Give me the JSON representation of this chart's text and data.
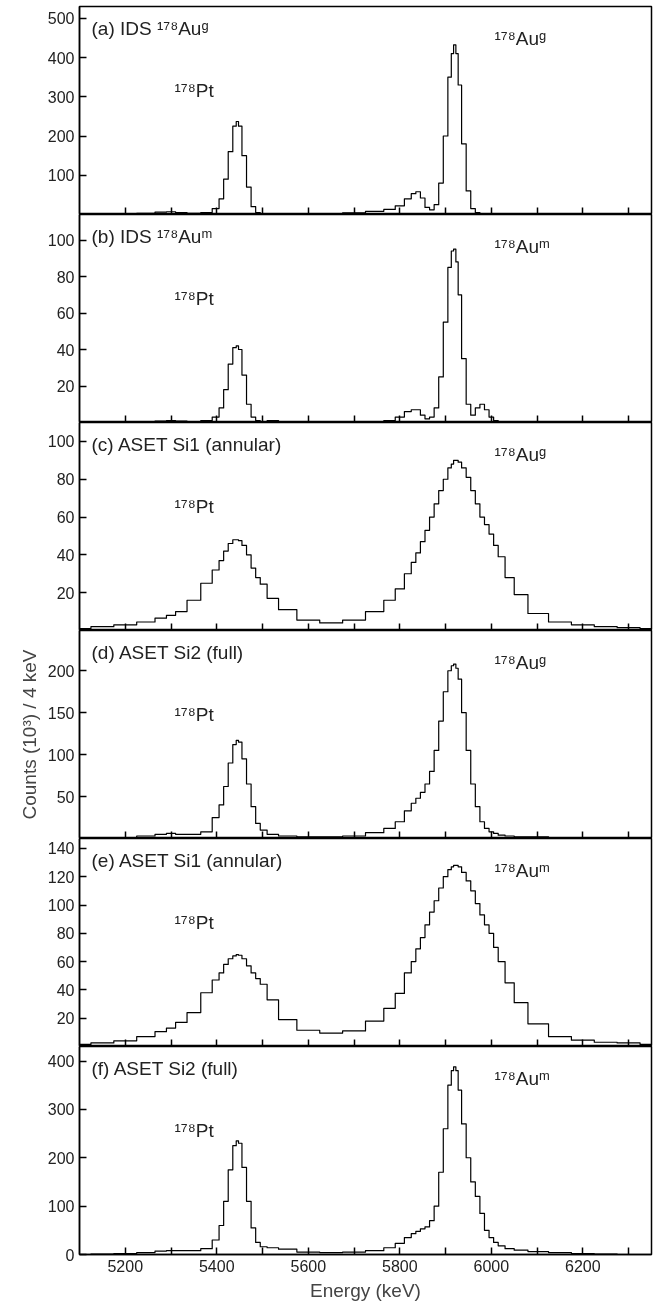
{
  "chart_data": [
    {
      "type": "step",
      "x": [
        5100,
        5150,
        5200,
        5250,
        5280,
        5300,
        5320,
        5350,
        5380,
        5400,
        5410,
        5420,
        5430,
        5440,
        5445,
        5450,
        5460,
        5470,
        5480,
        5490,
        5500,
        5520,
        5550,
        5600,
        5650,
        5700,
        5750,
        5780,
        5800,
        5820,
        5830,
        5840,
        5850,
        5860,
        5870,
        5880,
        5890,
        5900,
        5910,
        5915,
        5920,
        5925,
        5930,
        5940,
        5950,
        5960,
        5970,
        5980,
        5990,
        6000,
        6010,
        6020,
        6040,
        6060,
        6100,
        6150,
        6200,
        6250,
        6300,
        6350
      ],
      "series": [
        {
          "color": "#000000",
          "values": [
            0,
            0,
            1,
            3,
            6,
            7,
            5,
            3,
            5,
            15,
            40,
            90,
            160,
            225,
            237,
            225,
            150,
            70,
            20,
            5,
            2,
            1,
            1,
            1,
            2,
            4,
            8,
            13,
            22,
            40,
            53,
            58,
            42,
            18,
            12,
            25,
            80,
            200,
            350,
            410,
            432,
            410,
            330,
            180,
            60,
            15,
            5,
            2,
            1,
            1,
            0,
            0,
            0,
            0,
            0,
            0,
            0,
            0,
            0,
            0
          ]
        }
      ],
      "xlim": [
        5100,
        6350
      ],
      "xticks": [
        {
          "value": 5200,
          "label": null
        },
        {
          "value": 5300,
          "label": null
        },
        {
          "value": 5400,
          "label": null
        },
        {
          "value": 5500,
          "label": null
        },
        {
          "value": 5600,
          "label": null
        },
        {
          "value": 5700,
          "label": null
        },
        {
          "value": 5800,
          "label": null
        },
        {
          "value": 5900,
          "label": null
        },
        {
          "value": 6000,
          "label": null
        },
        {
          "value": 6100,
          "label": null
        },
        {
          "value": 6200,
          "label": null
        },
        {
          "value": 6300,
          "label": null
        }
      ],
      "ylim": [
        0,
        530
      ],
      "yticks": [
        100,
        200,
        300,
        400,
        500
      ],
      "tick_labels": "y",
      "annotations": [
        "(a) IDS ¹⁷⁸Auᵍ",
        "¹⁷⁸Auᵍ",
        "¹⁷⁸Pt"
      ]
    },
    {
      "type": "step",
      "x": [
        5100,
        5150,
        5200,
        5250,
        5280,
        5300,
        5320,
        5350,
        5380,
        5400,
        5410,
        5420,
        5430,
        5440,
        5445,
        5450,
        5460,
        5470,
        5480,
        5490,
        5500,
        5520,
        5550,
        5600,
        5650,
        5700,
        5750,
        5780,
        5800,
        5820,
        5830,
        5840,
        5850,
        5860,
        5870,
        5880,
        5890,
        5900,
        5910,
        5915,
        5920,
        5925,
        5930,
        5940,
        5950,
        5960,
        5970,
        5980,
        5990,
        6000,
        6010,
        6020,
        6040,
        6060,
        6100,
        6150,
        6200,
        6250,
        6300,
        6350
      ],
      "series": [
        {
          "color": "#000000",
          "values": [
            0,
            0,
            0.2,
            0.5,
            0.8,
            1,
            0.7,
            0.5,
            1,
            3,
            8,
            18,
            32,
            41,
            42,
            40,
            26,
            10,
            3,
            1,
            0.5,
            1,
            0.5,
            0.2,
            0.2,
            0.3,
            0.5,
            1,
            3,
            6,
            7,
            7,
            4,
            2,
            3,
            8,
            25,
            55,
            85,
            94,
            95,
            88,
            70,
            35,
            10,
            4,
            8,
            10,
            7,
            3,
            1,
            0.5,
            0.2,
            0,
            0,
            0,
            0,
            0,
            0,
            0
          ]
        }
      ],
      "xlim": [
        5100,
        6350
      ],
      "xticks": [
        {
          "value": 5200,
          "label": null
        },
        {
          "value": 5300,
          "label": null
        },
        {
          "value": 5400,
          "label": null
        },
        {
          "value": 5500,
          "label": null
        },
        {
          "value": 5600,
          "label": null
        },
        {
          "value": 5700,
          "label": null
        },
        {
          "value": 5800,
          "label": null
        },
        {
          "value": 5900,
          "label": null
        },
        {
          "value": 6000,
          "label": null
        },
        {
          "value": 6100,
          "label": null
        },
        {
          "value": 6200,
          "label": null
        },
        {
          "value": 6300,
          "label": null
        }
      ],
      "ylim": [
        0,
        114
      ],
      "yticks": [
        20,
        40,
        60,
        80,
        100
      ],
      "tick_labels": "y",
      "annotations": [
        "(b) IDS ¹⁷⁸Auᵐ",
        "¹⁷⁸Auᵐ",
        "¹⁷⁸Pt"
      ]
    },
    {
      "type": "step",
      "x": [
        5100,
        5150,
        5200,
        5250,
        5280,
        5300,
        5320,
        5350,
        5380,
        5400,
        5410,
        5420,
        5430,
        5440,
        5445,
        5450,
        5460,
        5470,
        5480,
        5490,
        5500,
        5520,
        5550,
        5600,
        5650,
        5700,
        5750,
        5780,
        5800,
        5820,
        5830,
        5840,
        5850,
        5860,
        5870,
        5880,
        5890,
        5900,
        5910,
        5915,
        5920,
        5925,
        5930,
        5940,
        5950,
        5960,
        5970,
        5980,
        5990,
        6000,
        6010,
        6020,
        6040,
        6060,
        6100,
        6150,
        6200,
        6250,
        6300,
        6350
      ],
      "series": [
        {
          "color": "#000000",
          "values": [
            1,
            2,
            3,
            4.5,
            6.5,
            8,
            10,
            16,
            25,
            32,
            37,
            42,
            46,
            48,
            48,
            47.5,
            45,
            40,
            33,
            28,
            24.5,
            17,
            11,
            5.5,
            4,
            5.5,
            10,
            16,
            22,
            30,
            36,
            41,
            47,
            53,
            60,
            67,
            74,
            80,
            86,
            88,
            90,
            90,
            89,
            86,
            81,
            74,
            67,
            60,
            56,
            51,
            45,
            39,
            28,
            19,
            9,
            4.5,
            3,
            2,
            1.5,
            1
          ]
        }
      ],
      "xlim": [
        5100,
        6350
      ],
      "xticks": [
        {
          "value": 5200,
          "label": null
        },
        {
          "value": 5300,
          "label": null
        },
        {
          "value": 5400,
          "label": null
        },
        {
          "value": 5500,
          "label": null
        },
        {
          "value": 5600,
          "label": null
        },
        {
          "value": 5700,
          "label": null
        },
        {
          "value": 5800,
          "label": null
        },
        {
          "value": 5900,
          "label": null
        },
        {
          "value": 6000,
          "label": null
        },
        {
          "value": 6100,
          "label": null
        },
        {
          "value": 6200,
          "label": null
        },
        {
          "value": 6300,
          "label": null
        }
      ],
      "ylim": [
        0,
        110
      ],
      "yticks": [
        20,
        40,
        60,
        80,
        100
      ],
      "tick_labels": "y",
      "annotations": [
        "(c) ASET Si1 (annular)",
        "¹⁷⁸Auᵍ",
        "¹⁷⁸Pt"
      ]
    },
    {
      "type": "step",
      "x": [
        5100,
        5150,
        5200,
        5250,
        5280,
        5300,
        5320,
        5350,
        5380,
        5400,
        5410,
        5420,
        5430,
        5440,
        5445,
        5450,
        5460,
        5470,
        5480,
        5490,
        5500,
        5520,
        5550,
        5600,
        5650,
        5700,
        5750,
        5780,
        5800,
        5820,
        5830,
        5840,
        5850,
        5860,
        5870,
        5880,
        5890,
        5900,
        5910,
        5915,
        5920,
        5925,
        5930,
        5940,
        5950,
        5960,
        5970,
        5980,
        5990,
        6000,
        6010,
        6020,
        6040,
        6060,
        6100,
        6150,
        6200,
        6250,
        6300,
        6350
      ],
      "series": [
        {
          "color": "#000000",
          "values": [
            0,
            0,
            1,
            3,
            5,
            6,
            5,
            5,
            8,
            25,
            40,
            62,
            90,
            112,
            117,
            115,
            95,
            65,
            38,
            18,
            10,
            5,
            3,
            2,
            2,
            3,
            7,
            12,
            20,
            33,
            42,
            48,
            55,
            65,
            80,
            105,
            140,
            175,
            200,
            206,
            208,
            203,
            190,
            150,
            105,
            65,
            38,
            20,
            12,
            8,
            6,
            4,
            3,
            2,
            2,
            1,
            0,
            0,
            0,
            0
          ]
        }
      ],
      "xlim": [
        5100,
        6350
      ],
      "xticks": [
        {
          "value": 5200,
          "label": null
        },
        {
          "value": 5300,
          "label": null
        },
        {
          "value": 5400,
          "label": null
        },
        {
          "value": 5500,
          "label": null
        },
        {
          "value": 5600,
          "label": null
        },
        {
          "value": 5700,
          "label": null
        },
        {
          "value": 5800,
          "label": null
        },
        {
          "value": 5900,
          "label": null
        },
        {
          "value": 6000,
          "label": null
        },
        {
          "value": 6100,
          "label": null
        },
        {
          "value": 6200,
          "label": null
        },
        {
          "value": 6300,
          "label": null
        }
      ],
      "ylim": [
        0,
        248
      ],
      "yticks": [
        50,
        100,
        150,
        200
      ],
      "tick_labels": "y",
      "ylabel": "Counts (10³) / 4 keV",
      "annotations": [
        "(d) ASET Si2 (full)",
        "¹⁷⁸Auᵍ",
        "¹⁷⁸Pt"
      ]
    },
    {
      "type": "step",
      "x": [
        5100,
        5150,
        5200,
        5250,
        5280,
        5300,
        5320,
        5350,
        5380,
        5400,
        5410,
        5420,
        5430,
        5440,
        5445,
        5450,
        5460,
        5470,
        5480,
        5490,
        5500,
        5520,
        5550,
        5600,
        5650,
        5700,
        5750,
        5780,
        5800,
        5820,
        5830,
        5840,
        5850,
        5860,
        5870,
        5880,
        5890,
        5900,
        5910,
        5915,
        5920,
        5925,
        5930,
        5940,
        5950,
        5960,
        5970,
        5980,
        5990,
        6000,
        6010,
        6020,
        6040,
        6060,
        6100,
        6150,
        6200,
        6250,
        6300,
        6350
      ],
      "series": [
        {
          "color": "#000000",
          "values": [
            1.5,
            2.5,
            4,
            7,
            10.5,
            13,
            17,
            24,
            38,
            47,
            52,
            58,
            62,
            64,
            65,
            64.5,
            62,
            57,
            52,
            48,
            44,
            33,
            19,
            11.5,
            9.5,
            11,
            18,
            27,
            37.5,
            52,
            60,
            69,
            77,
            86,
            95,
            103,
            112,
            120,
            125,
            127,
            128,
            128,
            127,
            123,
            117,
            110,
            101,
            93,
            86,
            80,
            70,
            60,
            45,
            31,
            16,
            7,
            4.5,
            3,
            2.5,
            1.5
          ]
        }
      ],
      "xlim": [
        5100,
        6350
      ],
      "xticks": [
        {
          "value": 5200,
          "label": null
        },
        {
          "value": 5300,
          "label": null
        },
        {
          "value": 5400,
          "label": null
        },
        {
          "value": 5500,
          "label": null
        },
        {
          "value": 5600,
          "label": null
        },
        {
          "value": 5700,
          "label": null
        },
        {
          "value": 5800,
          "label": null
        },
        {
          "value": 5900,
          "label": null
        },
        {
          "value": 6000,
          "label": null
        },
        {
          "value": 6100,
          "label": null
        },
        {
          "value": 6200,
          "label": null
        },
        {
          "value": 6300,
          "label": null
        }
      ],
      "ylim": [
        0,
        147
      ],
      "yticks": [
        20,
        40,
        60,
        80,
        100,
        120,
        140
      ],
      "tick_labels": "y",
      "annotations": [
        "(e) ASET Si1 (annular)",
        "¹⁷⁸Auᵐ",
        "¹⁷⁸Pt"
      ]
    },
    {
      "type": "step",
      "x": [
        5100,
        5150,
        5200,
        5250,
        5280,
        5300,
        5320,
        5350,
        5380,
        5400,
        5410,
        5420,
        5430,
        5440,
        5445,
        5450,
        5460,
        5470,
        5480,
        5490,
        5500,
        5520,
        5550,
        5600,
        5650,
        5700,
        5750,
        5780,
        5800,
        5820,
        5830,
        5840,
        5850,
        5860,
        5870,
        5880,
        5890,
        5900,
        5910,
        5915,
        5920,
        5925,
        5930,
        5940,
        5950,
        5960,
        5970,
        5980,
        5990,
        6000,
        6010,
        6020,
        6040,
        6060,
        6100,
        6150,
        6200,
        6250,
        6300,
        6350
      ],
      "series": [
        {
          "color": "#000000",
          "values": [
            0,
            1,
            2,
            4,
            7,
            8,
            8,
            8,
            12,
            30,
            60,
            110,
            175,
            225,
            235,
            230,
            180,
            110,
            55,
            25,
            16,
            14,
            11,
            5,
            4,
            5,
            8,
            14,
            23,
            35,
            43,
            48,
            53,
            57,
            70,
            100,
            170,
            260,
            350,
            380,
            388,
            380,
            340,
            270,
            200,
            150,
            120,
            85,
            50,
            35,
            25,
            18,
            12,
            9,
            6,
            4,
            2,
            1,
            0,
            0
          ]
        }
      ],
      "xlim": [
        5100,
        6350
      ],
      "xticks": [
        {
          "value": 5200,
          "label": "5200"
        },
        {
          "value": 5300,
          "label": null
        },
        {
          "value": 5400,
          "label": "5400"
        },
        {
          "value": 5500,
          "label": null
        },
        {
          "value": 5600,
          "label": "5600"
        },
        {
          "value": 5700,
          "label": null
        },
        {
          "value": 5800,
          "label": "5800"
        },
        {
          "value": 5900,
          "label": null
        },
        {
          "value": 6000,
          "label": "6000"
        },
        {
          "value": 6100,
          "label": null
        },
        {
          "value": 6200,
          "label": "6200"
        },
        {
          "value": 6300,
          "label": null
        }
      ],
      "ylim": [
        0,
        430
      ],
      "yticks": [
        0,
        100,
        200,
        300,
        400
      ],
      "xlabel": "Energy (keV)",
      "annotations": [
        "(f) ASET Si2 (full)",
        "¹⁷⁸Auᵐ",
        "¹⁷⁸Pt"
      ]
    }
  ]
}
